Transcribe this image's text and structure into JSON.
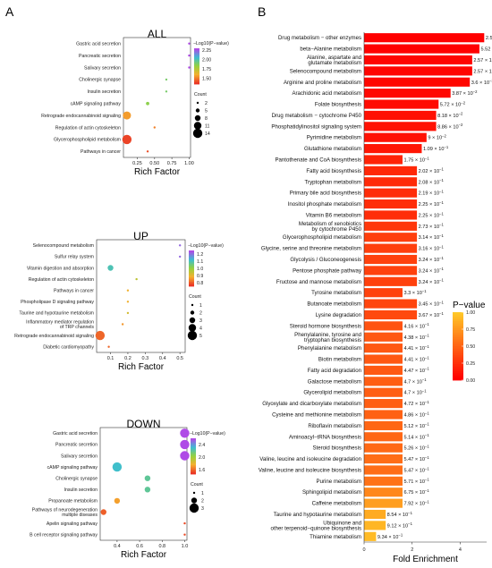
{
  "panels": {
    "a": "A",
    "b": "B"
  },
  "chart_data": [
    {
      "type": "scatter",
      "title": "ALL",
      "xlabel": "Rich Factor",
      "xlim": [
        0.05,
        1.02
      ],
      "xticks": [
        "0.25",
        "0.50",
        "0.75",
        "1.00"
      ],
      "xtick_values": [
        0.25,
        0.5,
        0.75,
        1.0
      ],
      "color_legend_title": "−Log10(P−value)",
      "color_ticks": [
        "2.25",
        "2.00",
        "1.75",
        "1.50"
      ],
      "color_range": [
        1.35,
        2.3
      ],
      "size_legend_title": "Count",
      "size_ticks": [
        "2",
        "5",
        "8",
        "11",
        "14"
      ],
      "size_values": [
        2,
        5,
        8,
        11,
        14
      ],
      "points": [
        {
          "term": "Gastric acid secretion",
          "x": 1.0,
          "count": 2,
          "logp": 2.3
        },
        {
          "term": "Pancreatic secretion",
          "x": 1.0,
          "count": 2,
          "logp": 2.3
        },
        {
          "term": "Salivary secretion",
          "x": 1.0,
          "count": 2,
          "logp": 2.3
        },
        {
          "term": "Cholinergic synapse",
          "x": 0.67,
          "count": 2,
          "logp": 1.9
        },
        {
          "term": "Insulin secretion",
          "x": 0.67,
          "count": 2,
          "logp": 1.9
        },
        {
          "term": "cAMP signaling pathway",
          "x": 0.4,
          "count": 4,
          "logp": 1.85
        },
        {
          "term": "Retrograde endocannabinoid signaling",
          "x": 0.1,
          "count": 12,
          "logp": 1.55
        },
        {
          "term": "Regulation of actin cytoskeleton",
          "x": 0.5,
          "count": 2,
          "logp": 1.5
        },
        {
          "term": "Glycerophospholipid metabolism",
          "x": 0.1,
          "count": 14,
          "logp": 1.38
        },
        {
          "term": "Pathways in cancer",
          "x": 0.4,
          "count": 2,
          "logp": 1.4
        }
      ]
    },
    {
      "type": "scatter",
      "title": "UP",
      "xlabel": "Rich Factor",
      "xlim": [
        0.02,
        0.53
      ],
      "xticks": [
        "0.1",
        "0.2",
        "0.3",
        "0.4",
        "0.5"
      ],
      "xtick_values": [
        0.1,
        0.2,
        0.3,
        0.4,
        0.5
      ],
      "color_legend_title": "−Log10(P−value)",
      "color_ticks": [
        "1.2",
        "1.1",
        "1.0",
        "0.9",
        "0.8"
      ],
      "color_range": [
        0.75,
        1.25
      ],
      "size_legend_title": "Count",
      "size_ticks": [
        "1",
        "2",
        "3",
        "4",
        "5"
      ],
      "size_values": [
        1,
        2,
        3,
        4,
        5
      ],
      "points": [
        {
          "term": "Selenocompound metabolism",
          "x": 0.5,
          "count": 1,
          "logp": 1.22
        },
        {
          "term": "Sulfur relay system",
          "x": 0.5,
          "count": 1,
          "logp": 1.22
        },
        {
          "term": "Vitamin digestion and absorption",
          "x": 0.1,
          "count": 3,
          "logp": 1.1
        },
        {
          "term": "Regulation of actin cytoskeleton",
          "x": 0.25,
          "count": 1,
          "logp": 0.95
        },
        {
          "term": "Pathways in cancer",
          "x": 0.2,
          "count": 1,
          "logp": 0.88
        },
        {
          "term": "Phospholipase D signaling pathway",
          "x": 0.2,
          "count": 1,
          "logp": 0.88
        },
        {
          "term": "Taurine and hypotaurine metabolism",
          "x": 0.2,
          "count": 1,
          "logp": 0.92
        },
        {
          "term": "Inflammatory mediator regulation of TRP channels",
          "x": 0.17,
          "count": 1,
          "logp": 0.85
        },
        {
          "term": "Retrograde endocannabinoid signaling",
          "x": 0.04,
          "count": 5,
          "logp": 0.8
        },
        {
          "term": "Diabetic cardiomyopathy",
          "x": 0.09,
          "count": 1,
          "logp": 0.8
        }
      ]
    },
    {
      "type": "scatter",
      "title": "DOWN",
      "xlabel": "Rich Factor",
      "xlim": [
        0.25,
        1.02
      ],
      "xticks": [
        "0.4",
        "0.6",
        "0.8",
        "1.0"
      ],
      "xtick_values": [
        0.4,
        0.6,
        0.8,
        1.0
      ],
      "color_legend_title": "−Log10(P−value)",
      "color_ticks": [
        "2.4",
        "2.0",
        "1.6"
      ],
      "color_range": [
        1.45,
        2.6
      ],
      "size_legend_title": "Count",
      "size_ticks": [
        "1",
        "2",
        "3"
      ],
      "size_values": [
        1,
        2,
        3
      ],
      "points": [
        {
          "term": "Gastric acid secretion",
          "x": 1.0,
          "count": 3,
          "logp": 2.6
        },
        {
          "term": "Pancreatic secretion",
          "x": 1.0,
          "count": 3,
          "logp": 2.6
        },
        {
          "term": "Salivary secretion",
          "x": 1.0,
          "count": 3,
          "logp": 2.6
        },
        {
          "term": "cAMP signaling pathway",
          "x": 0.4,
          "count": 3,
          "logp": 2.3
        },
        {
          "term": "Cholinergic synapse",
          "x": 0.67,
          "count": 2,
          "logp": 2.2
        },
        {
          "term": "Insulin secretion",
          "x": 0.67,
          "count": 2,
          "logp": 2.2
        },
        {
          "term": "Propanoate metabolism",
          "x": 0.4,
          "count": 2,
          "logp": 1.7
        },
        {
          "term": "Pathways of neurodegeneration multiple diseases",
          "x": 0.28,
          "count": 2,
          "logp": 1.55
        },
        {
          "term": "Apelin signaling pathway",
          "x": 1.0,
          "count": 1,
          "logp": 1.5
        },
        {
          "term": "B cell receptor signaling pathway",
          "x": 1.0,
          "count": 1,
          "logp": 1.5
        }
      ]
    },
    {
      "type": "bar",
      "orientation": "horizontal",
      "xlabel": "Fold Enrichment",
      "xlim": [
        0,
        5.1
      ],
      "xticks": [
        "0",
        "2",
        "4"
      ],
      "xtick_values": [
        0,
        2,
        4
      ],
      "legend_title": "P−value",
      "legend_ticks": [
        "1.00",
        "0.75",
        "0.50",
        "0.25",
        "0.00"
      ],
      "legend_tick_values": [
        1.0,
        0.75,
        0.5,
        0.25,
        0.0
      ],
      "categories": [
        [
          "Drug metabolism − other enzymes"
        ],
        [
          "beta−Alanine metabolism"
        ],
        [
          "Alanine, aspartate and",
          "glutamate metabolism"
        ],
        [
          "Selenocompound metabolism"
        ],
        [
          "Arginine and proline metabolism"
        ],
        [
          "Arachidonic acid metabolism"
        ],
        [
          "Folate biosynthesis"
        ],
        [
          "Drug metabolism − cytochrome P450"
        ],
        [
          "Phosphatidylinositol signaling system"
        ],
        [
          "Pyrimidine metabolism"
        ],
        [
          "Glutathione metabolism"
        ],
        [
          "Pantothenate and CoA biosynthesis"
        ],
        [
          "Fatty acid biosynthesis"
        ],
        [
          "Tryptophan metabolism"
        ],
        [
          "Primary bile acid biosynthesis"
        ],
        [
          "Inositol phosphate metabolism"
        ],
        [
          "Vitamin B6 metabolism"
        ],
        [
          "Metabolism of xenobiotics",
          "by cytochrome P450"
        ],
        [
          "Glycerophospholipid metabolism"
        ],
        [
          "Glycine, serine and threonine metabolism"
        ],
        [
          "Glycolysis / Gluconeogenesis"
        ],
        [
          "Pentose phosphate pathway"
        ],
        [
          "Fructose and mannose metabolism"
        ],
        [
          "Tyrosine metabolism"
        ],
        [
          "Butanoate metabolism"
        ],
        [
          "Lysine degradation"
        ],
        [
          "Steroid hormone biosynthesis"
        ],
        [
          "Phenylalanine, tyrosine and",
          "tryptophan biosynthesis"
        ],
        [
          "Phenylalanine metabolism"
        ],
        [
          "Biotin metabolism"
        ],
        [
          "Fatty acid degradation"
        ],
        [
          "Galactose metabolism"
        ],
        [
          "Glycerolipid metabolism"
        ],
        [
          "Glyoxylate and dicarboxylate metabolism"
        ],
        [
          "Cysteine and methionine metabolism"
        ],
        [
          "Riboflavin metabolism"
        ],
        [
          "Aminoacyl−tRNA biosynthesis"
        ],
        [
          "Steroid biosynthesis"
        ],
        [
          "Valine, leucine and isoleucine degradation"
        ],
        [
          "Valine, leucine and isoleucine biosynthesis"
        ],
        [
          "Purine metabolism"
        ],
        [
          "Sphingolipid metabolism"
        ],
        [
          "Caffeine metabolism"
        ],
        [
          "Taurine and hypotaurine metabolism"
        ],
        [
          "Ubiquinone and",
          "other terpenoid−quinone biosynthesis"
        ],
        [
          "Thiamine metabolism"
        ]
      ],
      "values": [
        5.0,
        4.8,
        4.5,
        4.5,
        4.4,
        3.6,
        3.1,
        3.0,
        3.0,
        2.6,
        2.4,
        1.6,
        2.2,
        2.2,
        2.2,
        2.2,
        2.2,
        2.2,
        2.2,
        2.2,
        2.2,
        2.2,
        2.2,
        1.6,
        2.2,
        2.2,
        1.6,
        1.6,
        1.6,
        1.6,
        1.6,
        1.6,
        1.6,
        1.6,
        1.6,
        1.6,
        1.6,
        1.6,
        1.6,
        1.6,
        1.6,
        1.6,
        1.6,
        0.9,
        0.9,
        0.5
      ],
      "pvalues": [
        0.00251,
        0.00552,
        0.0257,
        0.0257,
        0.036,
        0.0387,
        0.0572,
        0.0818,
        0.0886,
        0.09,
        0.109,
        0.175,
        0.202,
        0.208,
        0.219,
        0.225,
        0.225,
        0.273,
        0.314,
        0.316,
        0.324,
        0.324,
        0.324,
        0.33,
        0.345,
        0.367,
        0.416,
        0.438,
        0.441,
        0.441,
        0.447,
        0.47,
        0.47,
        0.472,
        0.486,
        0.512,
        0.514,
        0.526,
        0.547,
        0.547,
        0.571,
        0.675,
        0.792,
        0.854,
        0.912,
        0.934
      ],
      "value_labels": [
        {
          "m": "2.51",
          "e": "−3"
        },
        {
          "m": "5.52",
          "e": "−3"
        },
        {
          "m": "2.57",
          "e": "−2"
        },
        {
          "m": "2.57",
          "e": "−2"
        },
        {
          "m": "3.6",
          "e": "−2"
        },
        {
          "m": "3.87",
          "e": "−2"
        },
        {
          "m": "5.72",
          "e": "−2"
        },
        {
          "m": "8.18",
          "e": "−2"
        },
        {
          "m": "8.86",
          "e": "−2"
        },
        {
          "m": "9",
          "e": "−2"
        },
        {
          "m": "1.09",
          "e": "−1"
        },
        {
          "m": "1.75",
          "e": "−1"
        },
        {
          "m": "2.02",
          "e": "−1"
        },
        {
          "m": "2.08",
          "e": "−1"
        },
        {
          "m": "2.19",
          "e": "−1"
        },
        {
          "m": "2.25",
          "e": "−1"
        },
        {
          "m": "2.25",
          "e": "−1"
        },
        {
          "m": "2.73",
          "e": "−1"
        },
        {
          "m": "3.14",
          "e": "−1"
        },
        {
          "m": "3.16",
          "e": "−1"
        },
        {
          "m": "3.24",
          "e": "−1"
        },
        {
          "m": "3.24",
          "e": "−1"
        },
        {
          "m": "3.24",
          "e": "−1"
        },
        {
          "m": "3.3",
          "e": "−1"
        },
        {
          "m": "3.45",
          "e": "−1"
        },
        {
          "m": "3.67",
          "e": "−1"
        },
        {
          "m": "4.16",
          "e": "−1"
        },
        {
          "m": "4.38",
          "e": "−1"
        },
        {
          "m": "4.41",
          "e": "−1"
        },
        {
          "m": "4.41",
          "e": "−1"
        },
        {
          "m": "4.47",
          "e": "−1"
        },
        {
          "m": "4.7",
          "e": "−1"
        },
        {
          "m": "4.7",
          "e": "−1"
        },
        {
          "m": "4.72",
          "e": "−1"
        },
        {
          "m": "4.86",
          "e": "−1"
        },
        {
          "m": "5.12",
          "e": "−1"
        },
        {
          "m": "5.14",
          "e": "−1"
        },
        {
          "m": "5.26",
          "e": "−1"
        },
        {
          "m": "5.47",
          "e": "−1"
        },
        {
          "m": "5.47",
          "e": "−1"
        },
        {
          "m": "5.71",
          "e": "−1"
        },
        {
          "m": "6.75",
          "e": "−1"
        },
        {
          "m": "7.92",
          "e": "−1"
        },
        {
          "m": "8.54",
          "e": "−1"
        },
        {
          "m": "9.12",
          "e": "−1"
        },
        {
          "m": "9.34",
          "e": "−1"
        }
      ]
    }
  ]
}
